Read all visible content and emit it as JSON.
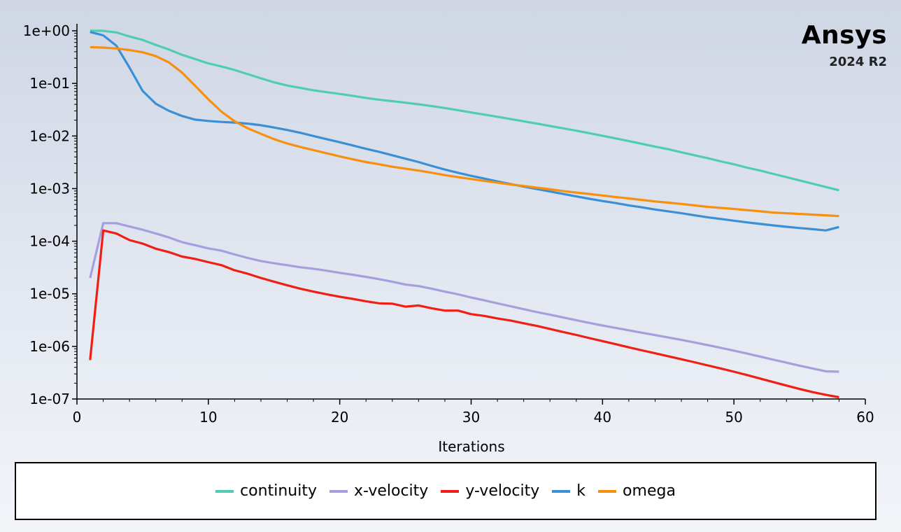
{
  "brand": {
    "name": "Ansys",
    "version": "2024 R2"
  },
  "chart_data": {
    "type": "line",
    "xlabel": "Iterations",
    "xlim": [
      0,
      60
    ],
    "x_ticks": [
      "0",
      "10",
      "20",
      "30",
      "40",
      "50",
      "60"
    ],
    "y_scale": "log",
    "ylim": [
      1e-07,
      1
    ],
    "y_ticks": [
      "1e+00",
      "1e-01",
      "1e-02",
      "1e-03",
      "1e-04",
      "1e-05",
      "1e-06",
      "1e-07"
    ],
    "legend_position": "bottom",
    "x": [
      1,
      2,
      3,
      4,
      5,
      6,
      7,
      8,
      9,
      10,
      11,
      12,
      13,
      14,
      15,
      16,
      17,
      18,
      19,
      20,
      21,
      22,
      23,
      24,
      25,
      26,
      27,
      28,
      29,
      30,
      31,
      32,
      33,
      34,
      35,
      36,
      37,
      38,
      39,
      40,
      41,
      42,
      43,
      44,
      45,
      46,
      47,
      48,
      49,
      50,
      51,
      52,
      53,
      54,
      55,
      56,
      57,
      58
    ],
    "series": [
      {
        "name": "continuity",
        "color": "#4ecdb4",
        "values": [
          1.0,
          1.0,
          0.93,
          0.78,
          0.67,
          0.54,
          0.44,
          0.35,
          0.29,
          0.24,
          0.21,
          0.18,
          0.15,
          0.125,
          0.105,
          0.091,
          0.082,
          0.074,
          0.068,
          0.063,
          0.058,
          0.053,
          0.049,
          0.046,
          0.043,
          0.04,
          0.037,
          0.034,
          0.031,
          0.028,
          0.0255,
          0.0232,
          0.021,
          0.019,
          0.0172,
          0.0155,
          0.014,
          0.0126,
          0.0113,
          0.0101,
          0.009,
          0.008,
          0.0071,
          0.0063,
          0.0056,
          0.0049,
          0.0043,
          0.0038,
          0.0033,
          0.0029,
          0.0025,
          0.0022,
          0.0019,
          0.00165,
          0.00143,
          0.00124,
          0.00107,
          0.00093
        ]
      },
      {
        "name": "x-velocity",
        "color": "#a79ede",
        "values": [
          2e-05,
          0.00022,
          0.00022,
          0.00019,
          0.000165,
          0.00014,
          0.000118,
          9.6e-05,
          8.4e-05,
          7.3e-05,
          6.6e-05,
          5.6e-05,
          4.8e-05,
          4.2e-05,
          3.8e-05,
          3.5e-05,
          3.2e-05,
          3e-05,
          2.75e-05,
          2.5e-05,
          2.3e-05,
          2.1e-05,
          1.9e-05,
          1.7e-05,
          1.5e-05,
          1.4e-05,
          1.25e-05,
          1.1e-05,
          9.8e-06,
          8.5e-06,
          7.5e-06,
          6.6e-06,
          5.8e-06,
          5.1e-06,
          4.5e-06,
          4e-06,
          3.55e-06,
          3.15e-06,
          2.8e-06,
          2.5e-06,
          2.25e-06,
          2.02e-06,
          1.82e-06,
          1.64e-06,
          1.48e-06,
          1.33e-06,
          1.19e-06,
          1.06e-06,
          9.4e-07,
          8.3e-07,
          7.3e-07,
          6.4e-07,
          5.6e-07,
          4.9e-07,
          4.3e-07,
          3.8e-07,
          3.35e-07,
          3.3e-07
        ]
      },
      {
        "name": "y-velocity",
        "color": "#f01e14",
        "values": [
          5.5e-07,
          0.00016,
          0.00014,
          0.000105,
          9e-05,
          7.2e-05,
          6.2e-05,
          5.1e-05,
          4.6e-05,
          4e-05,
          3.5e-05,
          2.8e-05,
          2.4e-05,
          2e-05,
          1.7e-05,
          1.45e-05,
          1.25e-05,
          1.1e-05,
          9.8e-06,
          8.8e-06,
          8e-06,
          7.2e-06,
          6.6e-06,
          6.5e-06,
          5.7e-06,
          6e-06,
          5.3e-06,
          4.8e-06,
          4.8e-06,
          4.1e-06,
          3.8e-06,
          3.4e-06,
          3.1e-06,
          2.75e-06,
          2.45e-06,
          2.15e-06,
          1.88e-06,
          1.65e-06,
          1.44e-06,
          1.26e-06,
          1.1e-06,
          9.6e-07,
          8.4e-07,
          7.4e-07,
          6.5e-07,
          5.7e-07,
          5e-07,
          4.35e-07,
          3.8e-07,
          3.3e-07,
          2.85e-07,
          2.45e-07,
          2.1e-07,
          1.8e-07,
          1.55e-07,
          1.35e-07,
          1.2e-07,
          1.08e-07
        ]
      },
      {
        "name": "k",
        "color": "#3a8fd6",
        "values": [
          0.95,
          0.82,
          0.52,
          0.2,
          0.072,
          0.041,
          0.03,
          0.024,
          0.0205,
          0.0193,
          0.0185,
          0.018,
          0.0172,
          0.016,
          0.0145,
          0.013,
          0.0115,
          0.01,
          0.0087,
          0.0076,
          0.0066,
          0.0057,
          0.005,
          0.0043,
          0.0037,
          0.0032,
          0.0027,
          0.0023,
          0.002,
          0.00175,
          0.00155,
          0.00137,
          0.00122,
          0.00109,
          0.00098,
          0.00088,
          0.00079,
          0.00071,
          0.00064,
          0.00058,
          0.00053,
          0.00048,
          0.00044,
          0.0004,
          0.00037,
          0.00034,
          0.00031,
          0.000285,
          0.000265,
          0.000245,
          0.000228,
          0.000213,
          0.0002,
          0.000188,
          0.000178,
          0.000169,
          0.00016,
          0.000186
        ]
      },
      {
        "name": "omega",
        "color": "#f7900f",
        "values": [
          0.49,
          0.48,
          0.46,
          0.43,
          0.39,
          0.33,
          0.25,
          0.16,
          0.09,
          0.05,
          0.029,
          0.019,
          0.014,
          0.011,
          0.0087,
          0.0072,
          0.0062,
          0.0054,
          0.0047,
          0.0041,
          0.0036,
          0.0032,
          0.0029,
          0.0026,
          0.0024,
          0.0022,
          0.002,
          0.0018,
          0.00165,
          0.00152,
          0.0014,
          0.0013,
          0.0012,
          0.00112,
          0.00104,
          0.00097,
          0.0009,
          0.00084,
          0.00079,
          0.00074,
          0.00069,
          0.00065,
          0.00061,
          0.00057,
          0.00054,
          0.00051,
          0.00048,
          0.00045,
          0.00043,
          0.00041,
          0.00039,
          0.00037,
          0.00035,
          0.00034,
          0.00033,
          0.00032,
          0.00031,
          0.0003
        ]
      }
    ]
  }
}
